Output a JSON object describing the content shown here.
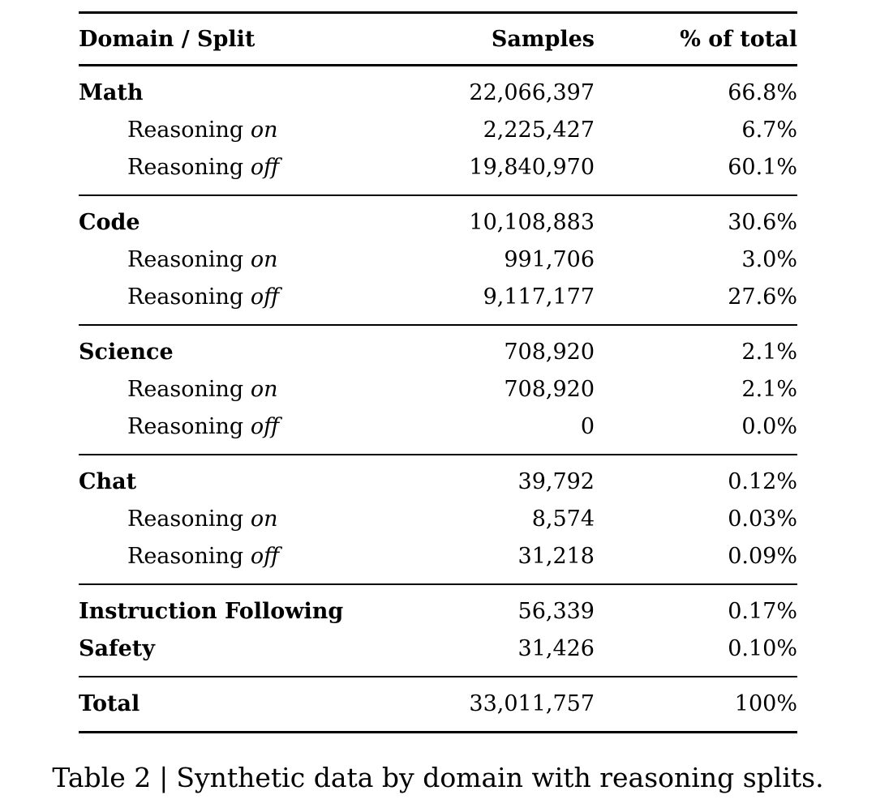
{
  "table": {
    "columns": [
      "Domain / Split",
      "Samples",
      "% of total"
    ],
    "sections": [
      {
        "rows": [
          {
            "type": "domain",
            "label": "Math",
            "samples": "22,066,397",
            "pct": "66.8%"
          },
          {
            "type": "split",
            "label": "Reasoning",
            "mode": "on",
            "samples": "2,225,427",
            "pct": "6.7%"
          },
          {
            "type": "split",
            "label": "Reasoning",
            "mode": "off",
            "samples": "19,840,970",
            "pct": "60.1%"
          }
        ]
      },
      {
        "rows": [
          {
            "type": "domain",
            "label": "Code",
            "samples": "10,108,883",
            "pct": "30.6%"
          },
          {
            "type": "split",
            "label": "Reasoning",
            "mode": "on",
            "samples": "991,706",
            "pct": "3.0%"
          },
          {
            "type": "split",
            "label": "Reasoning",
            "mode": "off",
            "samples": "9,117,177",
            "pct": "27.6%"
          }
        ]
      },
      {
        "rows": [
          {
            "type": "domain",
            "label": "Science",
            "samples": "708,920",
            "pct": "2.1%"
          },
          {
            "type": "split",
            "label": "Reasoning",
            "mode": "on",
            "samples": "708,920",
            "pct": "2.1%"
          },
          {
            "type": "split",
            "label": "Reasoning",
            "mode": "off",
            "samples": "0",
            "pct": "0.0%"
          }
        ]
      },
      {
        "rows": [
          {
            "type": "domain",
            "label": "Chat",
            "samples": "39,792",
            "pct": "0.12%"
          },
          {
            "type": "split",
            "label": "Reasoning",
            "mode": "on",
            "samples": "8,574",
            "pct": "0.03%"
          },
          {
            "type": "split",
            "label": "Reasoning",
            "mode": "off",
            "samples": "31,218",
            "pct": "0.09%"
          }
        ]
      },
      {
        "rows": [
          {
            "type": "domain",
            "label": "Instruction Following",
            "samples": "56,339",
            "pct": "0.17%"
          },
          {
            "type": "domain",
            "label": "Safety",
            "samples": "31,426",
            "pct": "0.10%"
          }
        ]
      },
      {
        "rows": [
          {
            "type": "domain",
            "label": "Total",
            "samples": "33,011,757",
            "pct": "100%"
          }
        ]
      }
    ]
  },
  "caption": {
    "label": "Table 2",
    "separator": "|",
    "text": "Synthetic data by domain with reasoning splits."
  },
  "colors": {
    "text": "#000000",
    "background": "#ffffff",
    "rule": "#000000"
  }
}
